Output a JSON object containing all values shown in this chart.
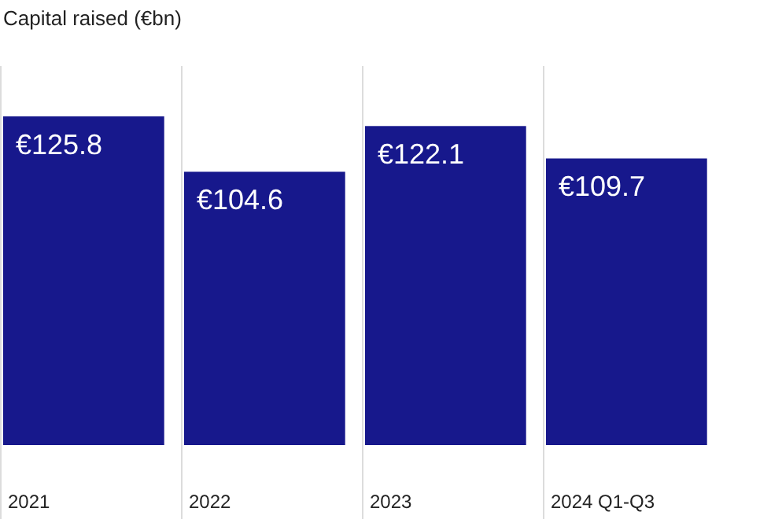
{
  "chart_data": {
    "type": "bar",
    "title": "Capital raised (€bn)",
    "categories": [
      "2021",
      "2022",
      "2023",
      "2024 Q1-Q3"
    ],
    "values": [
      125.8,
      104.6,
      122.1,
      109.7
    ],
    "value_labels": [
      "€125.8",
      "€104.6",
      "€122.1",
      "€109.7"
    ],
    "color": "#17188c",
    "grid": "x"
  }
}
